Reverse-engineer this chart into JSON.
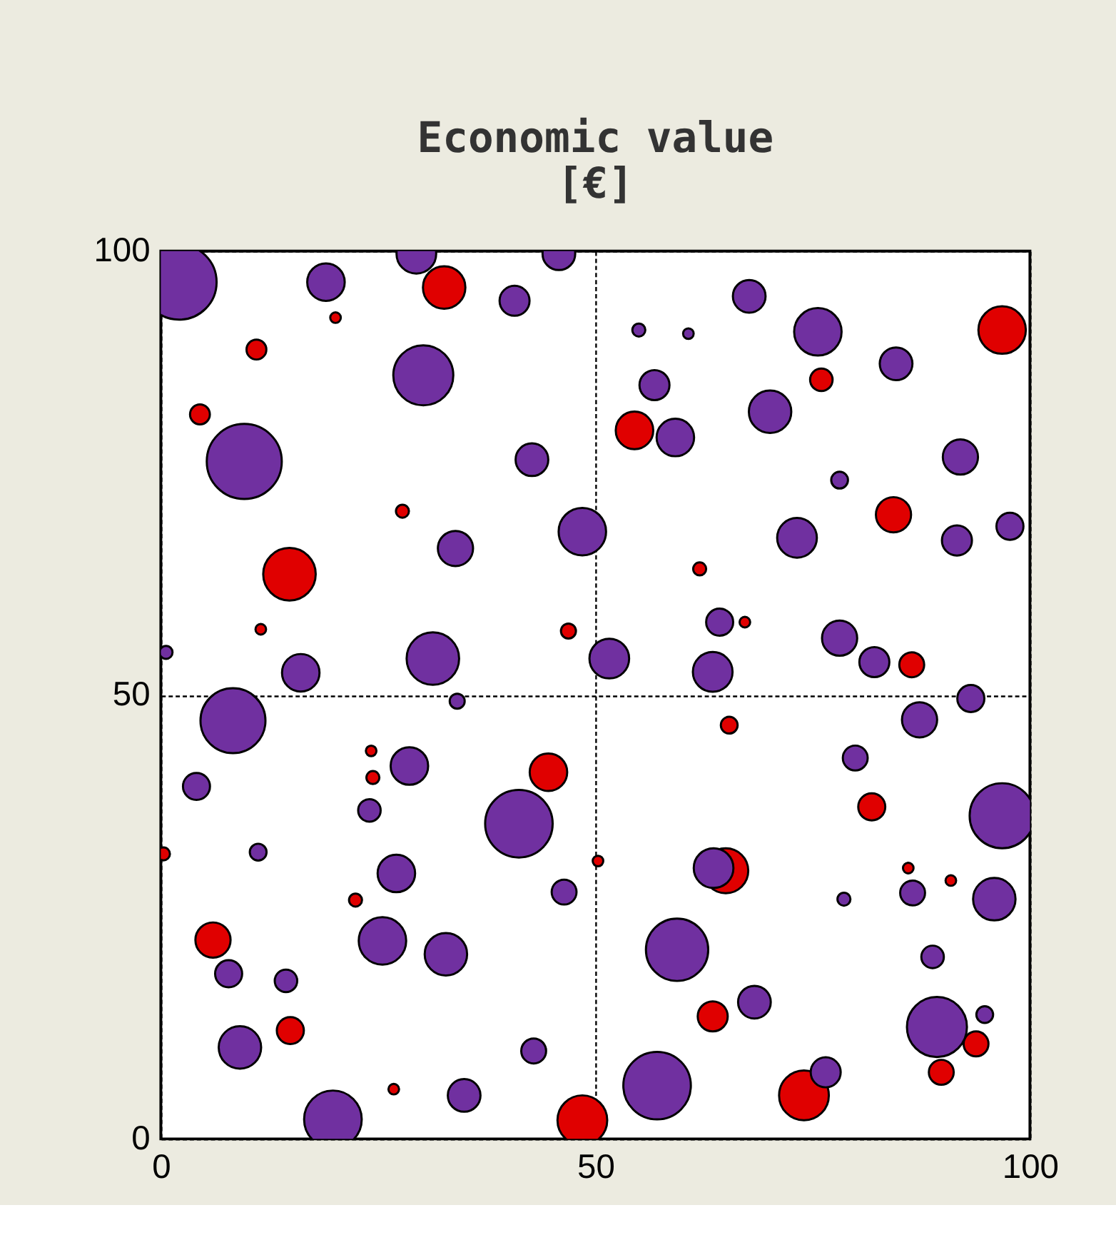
{
  "chart_data": {
    "type": "bubble",
    "title": "Economic value\n[€]",
    "relative": false,
    "xlim": [
      0,
      100
    ],
    "ylim": [
      0,
      100
    ],
    "xticks": [
      0,
      50,
      100
    ],
    "yticks": [
      0,
      50,
      100
    ],
    "grid": true,
    "series": [
      {
        "color": "#7030a0",
        "x": [
          2.1,
          19.0,
          29.4,
          45.8,
          40.7,
          30.2,
          9.6,
          42.7,
          48.5,
          33.9,
          16.1,
          31.3,
          8.3,
          28.6,
          4.1,
          41.2,
          27.1,
          25.5,
          32.8,
          7.8,
          9.1,
          19.8,
          34.9,
          42.9,
          46.4,
          24.0,
          14.4,
          11.2,
          34.1,
          0.6,
          56.8,
          59.2,
          67.7,
          75.6,
          84.6,
          70.1,
          92.0,
          78.1,
          73.2,
          91.6,
          97.7,
          78.1,
          82.1,
          64.3,
          51.6,
          63.5,
          87.3,
          93.2,
          79.9,
          96.8,
          63.6,
          59.4,
          68.3,
          57.1,
          76.5,
          89.3,
          94.8,
          95.9,
          86.5,
          88.8,
          78.6,
          55.0,
          60.7
        ],
        "values": [
          96.5,
          96.5,
          99.7,
          99.7,
          94.4,
          86.0,
          76.3,
          76.5,
          68.4,
          66.5,
          52.5,
          54.1,
          47.1,
          42.0,
          39.7,
          35.5,
          29.9,
          22.3,
          20.8,
          18.6,
          10.3,
          2.2,
          4.9,
          9.9,
          27.8,
          37.0,
          17.8,
          32.3,
          49.3,
          54.8,
          84.9,
          79.0,
          94.9,
          90.9,
          87.3,
          81.9,
          76.8,
          74.2,
          67.7,
          67.4,
          69.0,
          56.4,
          53.7,
          58.2,
          54.1,
          52.6,
          47.2,
          49.6,
          42.9,
          36.4,
          30.5,
          21.3,
          15.4,
          6.0,
          7.5,
          12.6,
          14.0,
          27.0,
          27.7,
          20.5,
          27.0,
          91.1,
          90.7
        ],
        "sizes": [
          1.0,
          0.25,
          0.28,
          0.19,
          0.16,
          0.64,
          1.0,
          0.19,
          0.4,
          0.22,
          0.25,
          0.49,
          0.75,
          0.25,
          0.13,
          0.81,
          0.25,
          0.4,
          0.32,
          0.13,
          0.32,
          0.59,
          0.19,
          0.11,
          0.11,
          0.09,
          0.09,
          0.05,
          0.04,
          0.03,
          0.16,
          0.25,
          0.19,
          0.4,
          0.19,
          0.32,
          0.22,
          0.05,
          0.28,
          0.16,
          0.13,
          0.22,
          0.16,
          0.13,
          0.28,
          0.28,
          0.22,
          0.13,
          0.11,
          0.75,
          0.28,
          0.69,
          0.19,
          0.81,
          0.16,
          0.64,
          0.05,
          0.32,
          0.11,
          0.09,
          0.03,
          0.03,
          0.02
        ]
      },
      {
        "color": "#e00000",
        "x": [
          32.6,
          11.0,
          4.5,
          14.8,
          27.8,
          54.5,
          76.0,
          96.8,
          84.3,
          86.4,
          62.0,
          46.9,
          65.4,
          44.6,
          81.8,
          65.0,
          6.0,
          14.9,
          63.5,
          74.0,
          89.8,
          93.8,
          48.5,
          0.3,
          24.4,
          20.1,
          11.5,
          24.2,
          22.4,
          26.8,
          67.2,
          50.3,
          86.0,
          90.9
        ],
        "values": [
          95.9,
          88.9,
          81.6,
          63.6,
          70.7,
          79.8,
          85.5,
          91.1,
          70.3,
          53.4,
          64.2,
          57.2,
          46.6,
          41.3,
          37.4,
          30.2,
          22.4,
          12.2,
          13.8,
          4.9,
          7.5,
          10.7,
          2.1,
          32.1,
          40.7,
          92.5,
          57.4,
          43.7,
          26.9,
          5.6,
          58.2,
          31.3,
          30.5,
          29.1
        ],
        "sizes": [
          0.32,
          0.07,
          0.07,
          0.49,
          0.03,
          0.25,
          0.09,
          0.4,
          0.22,
          0.11,
          0.03,
          0.04,
          0.05,
          0.25,
          0.13,
          0.36,
          0.22,
          0.13,
          0.16,
          0.44,
          0.11,
          0.11,
          0.44,
          0.03,
          0.03,
          0.02,
          0.02,
          0.02,
          0.03,
          0.02,
          0.02,
          0.02,
          0.02,
          0.02
        ]
      }
    ]
  }
}
